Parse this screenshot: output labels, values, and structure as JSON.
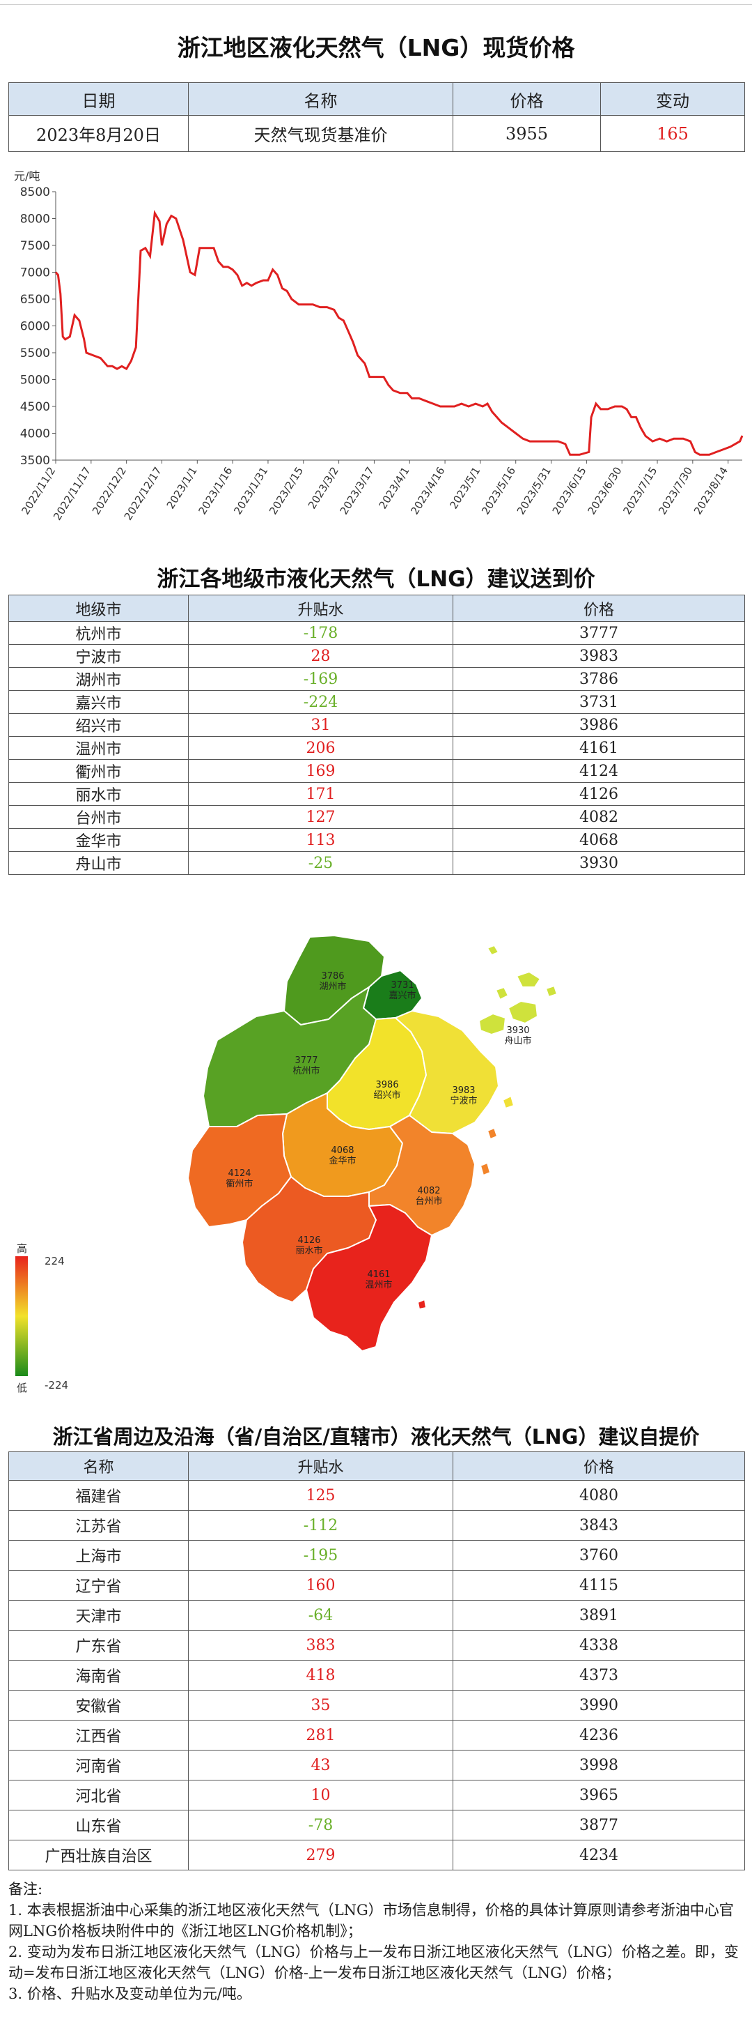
{
  "spot": {
    "title": "浙江地区液化天然气（LNG）现货价格",
    "headers": [
      "日期",
      "名称",
      "价格",
      "变动"
    ],
    "row": {
      "date": "2023年8月20日",
      "name": "天然气现货基准价",
      "price": "3955",
      "change": "165"
    }
  },
  "chart_data": {
    "type": "line",
    "title": "",
    "xlabel": "",
    "ylabel": "元/吨",
    "ylim": [
      3500,
      8500
    ],
    "yticks": [
      3500,
      4000,
      4500,
      5000,
      5500,
      6000,
      6500,
      7000,
      7500,
      8000,
      8500
    ],
    "xticks": [
      "2022/11/2",
      "2022/11/17",
      "2022/12/2",
      "2022/12/17",
      "2023/1/1",
      "2023/1/16",
      "2023/1/31",
      "2023/2/15",
      "2023/3/2",
      "2023/3/17",
      "2023/4/1",
      "2023/4/16",
      "2023/5/1",
      "2023/5/16",
      "2023/5/31",
      "2023/6/15",
      "2023/6/30",
      "2023/7/15",
      "2023/7/30",
      "2023/8/14"
    ],
    "x_start": "2022-11-02",
    "x_end": "2023-08-20",
    "grid": false,
    "line_color": "#e02020",
    "series": [
      {
        "points": [
          [
            "2022-11-02",
            7000
          ],
          [
            "2022-11-03",
            6950
          ],
          [
            "2022-11-04",
            6600
          ],
          [
            "2022-11-05",
            5800
          ],
          [
            "2022-11-06",
            5750
          ],
          [
            "2022-11-08",
            5800
          ],
          [
            "2022-11-10",
            6200
          ],
          [
            "2022-11-12",
            6100
          ],
          [
            "2022-11-14",
            5750
          ],
          [
            "2022-11-15",
            5500
          ],
          [
            "2022-11-18",
            5450
          ],
          [
            "2022-11-21",
            5400
          ],
          [
            "2022-11-24",
            5250
          ],
          [
            "2022-11-26",
            5250
          ],
          [
            "2022-11-28",
            5200
          ],
          [
            "2022-11-30",
            5250
          ],
          [
            "2022-12-02",
            5200
          ],
          [
            "2022-12-04",
            5350
          ],
          [
            "2022-12-06",
            5600
          ],
          [
            "2022-12-08",
            7400
          ],
          [
            "2022-12-10",
            7450
          ],
          [
            "2022-12-12",
            7300
          ],
          [
            "2022-12-14",
            8100
          ],
          [
            "2022-12-16",
            7950
          ],
          [
            "2022-12-17",
            7500
          ],
          [
            "2022-12-19",
            7900
          ],
          [
            "2022-12-21",
            8050
          ],
          [
            "2022-12-23",
            8000
          ],
          [
            "2022-12-26",
            7600
          ],
          [
            "2022-12-29",
            7000
          ],
          [
            "2022-12-31",
            6950
          ],
          [
            "2023-01-02",
            7450
          ],
          [
            "2023-01-05",
            7450
          ],
          [
            "2023-01-08",
            7450
          ],
          [
            "2023-01-10",
            7200
          ],
          [
            "2023-01-12",
            7100
          ],
          [
            "2023-01-14",
            7100
          ],
          [
            "2023-01-16",
            7050
          ],
          [
            "2023-01-18",
            6950
          ],
          [
            "2023-01-20",
            6750
          ],
          [
            "2023-01-22",
            6800
          ],
          [
            "2023-01-24",
            6750
          ],
          [
            "2023-01-26",
            6800
          ],
          [
            "2023-01-29",
            6850
          ],
          [
            "2023-01-31",
            6850
          ],
          [
            "2023-02-02",
            7050
          ],
          [
            "2023-02-04",
            6950
          ],
          [
            "2023-02-06",
            6700
          ],
          [
            "2023-02-08",
            6650
          ],
          [
            "2023-02-10",
            6500
          ],
          [
            "2023-02-13",
            6400
          ],
          [
            "2023-02-16",
            6400
          ],
          [
            "2023-02-19",
            6400
          ],
          [
            "2023-02-22",
            6350
          ],
          [
            "2023-02-25",
            6350
          ],
          [
            "2023-02-28",
            6300
          ],
          [
            "2023-03-02",
            6150
          ],
          [
            "2023-03-04",
            6100
          ],
          [
            "2023-03-06",
            5900
          ],
          [
            "2023-03-08",
            5700
          ],
          [
            "2023-03-10",
            5450
          ],
          [
            "2023-03-13",
            5300
          ],
          [
            "2023-03-15",
            5050
          ],
          [
            "2023-03-18",
            5050
          ],
          [
            "2023-03-21",
            5050
          ],
          [
            "2023-03-23",
            4900
          ],
          [
            "2023-03-25",
            4800
          ],
          [
            "2023-03-28",
            4750
          ],
          [
            "2023-03-31",
            4750
          ],
          [
            "2023-04-02",
            4650
          ],
          [
            "2023-04-05",
            4650
          ],
          [
            "2023-04-08",
            4600
          ],
          [
            "2023-04-11",
            4550
          ],
          [
            "2023-04-14",
            4500
          ],
          [
            "2023-04-17",
            4500
          ],
          [
            "2023-04-20",
            4500
          ],
          [
            "2023-04-23",
            4550
          ],
          [
            "2023-04-26",
            4500
          ],
          [
            "2023-04-29",
            4550
          ],
          [
            "2023-05-02",
            4500
          ],
          [
            "2023-05-04",
            4550
          ],
          [
            "2023-05-06",
            4400
          ],
          [
            "2023-05-08",
            4300
          ],
          [
            "2023-05-10",
            4200
          ],
          [
            "2023-05-13",
            4100
          ],
          [
            "2023-05-16",
            4000
          ],
          [
            "2023-05-19",
            3900
          ],
          [
            "2023-05-22",
            3850
          ],
          [
            "2023-05-26",
            3850
          ],
          [
            "2023-05-30",
            3850
          ],
          [
            "2023-06-03",
            3850
          ],
          [
            "2023-06-06",
            3800
          ],
          [
            "2023-06-08",
            3600
          ],
          [
            "2023-06-12",
            3600
          ],
          [
            "2023-06-16",
            3650
          ],
          [
            "2023-06-17",
            4300
          ],
          [
            "2023-06-19",
            4550
          ],
          [
            "2023-06-21",
            4450
          ],
          [
            "2023-06-24",
            4450
          ],
          [
            "2023-06-27",
            4500
          ],
          [
            "2023-06-30",
            4500
          ],
          [
            "2023-07-02",
            4450
          ],
          [
            "2023-07-04",
            4300
          ],
          [
            "2023-07-06",
            4300
          ],
          [
            "2023-07-08",
            4100
          ],
          [
            "2023-07-10",
            3950
          ],
          [
            "2023-07-13",
            3850
          ],
          [
            "2023-07-16",
            3900
          ],
          [
            "2023-07-19",
            3850
          ],
          [
            "2023-07-22",
            3900
          ],
          [
            "2023-07-26",
            3900
          ],
          [
            "2023-07-29",
            3850
          ],
          [
            "2023-07-31",
            3650
          ],
          [
            "2023-08-02",
            3600
          ],
          [
            "2023-08-06",
            3600
          ],
          [
            "2023-08-09",
            3650
          ],
          [
            "2023-08-12",
            3700
          ],
          [
            "2023-08-15",
            3750
          ],
          [
            "2023-08-17",
            3800
          ],
          [
            "2023-08-19",
            3850
          ],
          [
            "2023-08-20",
            3955
          ]
        ]
      }
    ]
  },
  "cities": {
    "title": "浙江各地级市液化天然气（LNG）建议送到价",
    "headers": [
      "地级市",
      "升贴水",
      "价格"
    ],
    "rows": [
      {
        "name": "杭州市",
        "diff": "-178",
        "price": "3777"
      },
      {
        "name": "宁波市",
        "diff": "28",
        "price": "3983"
      },
      {
        "name": "湖州市",
        "diff": "-169",
        "price": "3786"
      },
      {
        "name": "嘉兴市",
        "diff": "-224",
        "price": "3731"
      },
      {
        "name": "绍兴市",
        "diff": "31",
        "price": "3986"
      },
      {
        "name": "温州市",
        "diff": "206",
        "price": "4161"
      },
      {
        "name": "衢州市",
        "diff": "169",
        "price": "4124"
      },
      {
        "name": "丽水市",
        "diff": "171",
        "price": "4126"
      },
      {
        "name": "台州市",
        "diff": "127",
        "price": "4082"
      },
      {
        "name": "金华市",
        "diff": "113",
        "price": "4068"
      },
      {
        "name": "舟山市",
        "diff": "-25",
        "price": "3930"
      }
    ]
  },
  "map": {
    "legend_high": "高",
    "legend_low": "低",
    "legend_max": "224",
    "legend_min": "-224",
    "regions": [
      {
        "price": "3786",
        "name": "湖州市",
        "color": "#4f9a1e"
      },
      {
        "price": "3731",
        "name": "嘉兴市",
        "color": "#1a7d1a"
      },
      {
        "price": "3930",
        "name": "舟山市",
        "color": "#cfe23c"
      },
      {
        "price": "3777",
        "name": "杭州市",
        "color": "#58a224"
      },
      {
        "price": "3986",
        "name": "绍兴市",
        "color": "#f2e22a"
      },
      {
        "price": "3983",
        "name": "宁波市",
        "color": "#f0e036"
      },
      {
        "price": "4068",
        "name": "金华市",
        "color": "#f09a1e"
      },
      {
        "price": "4124",
        "name": "衢州市",
        "color": "#ef6a22"
      },
      {
        "price": "4082",
        "name": "台州市",
        "color": "#f2842a"
      },
      {
        "price": "4126",
        "name": "丽水市",
        "color": "#ec5a22"
      },
      {
        "price": "4161",
        "name": "温州市",
        "color": "#e8231c"
      }
    ]
  },
  "provinces": {
    "title": "浙江省周边及沿海（省/自治区/直辖市）液化天然气（LNG）建议自提价",
    "headers": [
      "名称",
      "升贴水",
      "价格"
    ],
    "rows": [
      {
        "name": "福建省",
        "diff": "125",
        "price": "4080"
      },
      {
        "name": "江苏省",
        "diff": "-112",
        "price": "3843"
      },
      {
        "name": "上海市",
        "diff": "-195",
        "price": "3760"
      },
      {
        "name": "辽宁省",
        "diff": "160",
        "price": "4115"
      },
      {
        "name": "天津市",
        "diff": "-64",
        "price": "3891"
      },
      {
        "name": "广东省",
        "diff": "383",
        "price": "4338"
      },
      {
        "name": "海南省",
        "diff": "418",
        "price": "4373"
      },
      {
        "name": "安徽省",
        "diff": "35",
        "price": "3990"
      },
      {
        "name": "江西省",
        "diff": "281",
        "price": "4236"
      },
      {
        "name": "河南省",
        "diff": "43",
        "price": "3998"
      },
      {
        "name": "河北省",
        "diff": "10",
        "price": "3965"
      },
      {
        "name": "山东省",
        "diff": "-78",
        "price": "3877"
      },
      {
        "name": "广西壮族自治区",
        "diff": "279",
        "price": "4234"
      }
    ]
  },
  "notes": [
    "备注:",
    "1. 本表根据浙油中心采集的浙江地区液化天然气（LNG）市场信息制得，价格的具体计算原则请参考浙油中心官网LNG价格板块附件中的《浙江地区LNG价格机制》；",
    "2. 变动为发布日浙江地区液化天然气（LNG）价格与上一发布日浙江地区液化天然气（LNG）价格之差。即，变动=发布日浙江地区液化天然气（LNG）价格-上一发布日浙江地区液化天然气（LNG）价格；",
    "3. 价格、升贴水及变动单位为元/吨。"
  ]
}
